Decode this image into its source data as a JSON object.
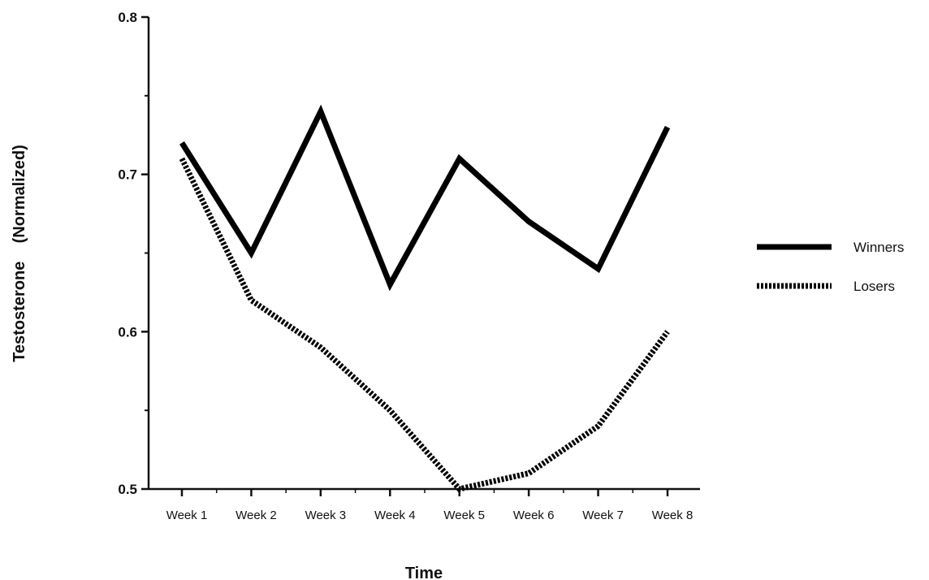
{
  "chart_data": {
    "type": "line",
    "title": "",
    "xlabel": "Time",
    "ylabel": "Testosterone    (Normalized)",
    "categories": [
      "Week 1",
      "Week 2",
      "Week 3",
      "Week 4",
      "Week 5",
      "Week 6",
      "Week 7",
      "Week 8"
    ],
    "ylim": [
      0.5,
      0.8
    ],
    "yticks": [
      "0.5",
      "0.6",
      "0.7",
      "0.8"
    ],
    "series": [
      {
        "name": "Winners",
        "style": "solid",
        "color": "#000000",
        "values": [
          0.72,
          0.65,
          0.74,
          0.63,
          0.71,
          0.67,
          0.64,
          0.73
        ]
      },
      {
        "name": "Losers",
        "style": "dotted",
        "color": "#000000",
        "values": [
          0.71,
          0.62,
          0.59,
          0.55,
          0.5,
          0.51,
          0.54,
          0.6
        ]
      }
    ],
    "grid": false,
    "legend_position": "right"
  }
}
